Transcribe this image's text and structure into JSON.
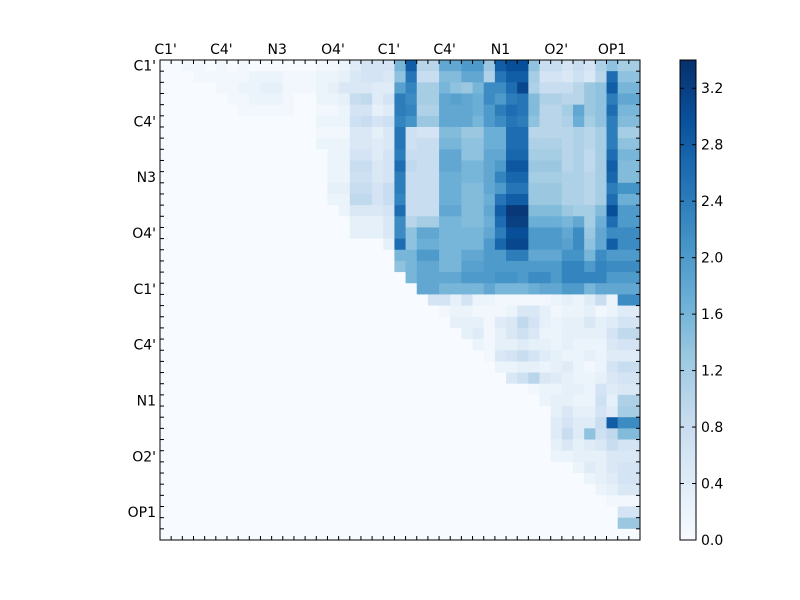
{
  "chart_data": {
    "type": "heatmap",
    "title": "",
    "xlabel": "",
    "ylabel": "",
    "n": 43,
    "x_tick_labels": [
      "C1'",
      "C4'",
      "N3",
      "O4'",
      "C1'",
      "C4'",
      "N1",
      "O2'",
      "OP1"
    ],
    "y_tick_labels": [
      "C1'",
      "C4'",
      "N3",
      "O4'",
      "C1'",
      "C4'",
      "N1",
      "O2'",
      "OP1"
    ],
    "tick_indices": [
      0,
      5,
      10,
      15,
      20,
      25,
      30,
      35,
      40
    ],
    "colorbar": {
      "min": 0.0,
      "max": 3.4,
      "ticks": [
        0.0,
        0.4,
        0.8,
        1.2,
        1.6,
        2.0,
        2.4,
        2.8,
        3.2
      ],
      "tick_labels": [
        "0.0",
        "0.4",
        "0.8",
        "1.2",
        "1.6",
        "2.0",
        "2.4",
        "2.8",
        "3.2"
      ],
      "colormap": "Blues"
    },
    "matrix": [
      "0 0 .1 .1 0 .1 0 .1 0 0 0 0 0 0 .1 .1 .2 .4 .6 .6 .6 1.6 2.8 1 1 1.8 1.8 2 2 1.3 2.8 3 3 1.4 .8 .8 .6 .8 .6 1.1 1.4 1.2 1.2",
      "0 0 0 .1 .1 .1 .1 .1 .2 .2 .2 .1 .1 .1 .2 .2 .3 .5 .6 .6 .5 1.4 2.5 .8 .8 1.5 1.5 1.8 1.8 1.1 2.5 2.8 2.8 1.2 .6 .6 .5 .7 .5 1 2.6 1.4 1.4",
      "0 0 0 0 0 .1 .1 .2 .2 .3 .3 .1 .1 .1 .2 .3 .5 .5 .5 .4 .4 1.9 2.3 1.2 1.2 1.6 1.4 1.3 1.6 2.2 2.2 2.6 3.1 1.1 .8 .8 .8 1 1.3 1.4 2.8 1.6 1.6",
      "0 0 0 0 0 0 .1 .1 .2 .2 .2 .1 0 0 .2 .2 .3 .8 .9 .4 .6 2.4 2.2 1.2 1.2 1.8 1.9 1.8 1.7 2.2 2 2.4 2.5 1.5 1.1 1.1 1 1 1.3 1.4 2.4 1.8 1.8",
      "0 0 0 0 0 0 0 .1 .1 .1 .1 .1 0 0 .1 .1 .2 .6 .6 .3 .4 2.4 2.3 1.1 1.1 1.8 1.8 1.8 1.7 2 2.4 2.6 2.5 1.5 1 1 1.2 1.8 1.3 1.4 2.6 1.6 1.6",
      "0 0 0 0 0 0 0 0 0 0 0 0 0 0 .2 .2 .2 .7 .8 .6 .7 2.3 2.1 1.3 1.3 1.8 1.8 1.8 1.6 2 2.2 2.5 2.4 1.4 1 1 1.1 1.7 1.2 1.4 2.4 1.5 1.5",
      "0 0 0 0 0 0 0 0 0 0 0 0 0 0 .1 .1 .1 .5 .5 .3 .5 2.5 .7 .6 .6 1.5 1.5 1.3 1.3 1.7 1.7 2.6 2.6 1 1 1 1 1.1 1 1.2 2.4 1.2 1.2",
      "0 0 0 0 0 0 0 0 0 0 0 0 0 0 .2 .2 .2 .5 .5 .4 .5 2.5 .7 .8 .8 1.6 1.6 1.4 1.4 1.7 1.7 2.6 2.6 1.1 1.1 1.1 1 1.1 1 1.2 2.4 1.4 1.4",
      "0 0 0 0 0 0 0 0 0 0 0 0 0 0 0 .2 .2 .6 .6 .4 .6 2.4 .8 .8 .8 1.8 1.8 1.4 1.4 1.8 1.8 2.7 2.7 1.2 1.2 1.2 1 1.1 .9 1.2 2.6 1.6 1.6",
      "0 0 0 0 0 0 0 0 0 0 0 0 0 0 0 .2 .2 .8 .8 .5 .6 2.6 .9 .8 .8 1.8 1.8 1.6 1.6 1.8 2 2.9 2.9 1.3 1.3 1.3 1 1.1 .9 1.2 2.8 1.5 1.5",
      "0 0 0 0 0 0 0 0 0 0 0 0 0 0 0 .2 .2 .7 .7 .5 .6 2.4 .8 .8 .8 1.7 1.7 1.6 1.6 1.8 2.3 2.7 2.7 1.2 1.2 1.2 1.1 1.1 1 1.2 2.7 1.5 1.5",
      "0 0 0 0 0 0 0 0 0 0 0 0 0 0 0 .3 .3 .8 .8 .6 .8 2.4 .8 .8 .8 1.7 1.7 1.5 1.5 1.8 2 2.5 2.5 1.3 1.3 1.3 1.1 1.1 1 1.2 2.4 2.1 2.1",
      "0 0 0 0 0 0 0 0 0 0 0 0 0 0 0 .2 .2 .9 .9 .6 .8 2.3 .8 .8 .8 1.7 1.7 1.5 1.5 1.7 2.5 2.8 2.8 1.3 1.3 1.3 1.1 1.1 1 1.2 2.6 1.7 1.7",
      "0 0 0 0 0 0 0 0 0 0 0 0 0 0 0 0 .2 .5 .5 .5 .6 2.6 .8 .8 .8 1.8 1.8 1.5 1.5 1.8 2.8 3.3 3.3 1.5 1.5 1.5 1.3 1.2 1.2 1.5 3 2 2",
      "0 0 0 0 0 0 0 0 0 0 0 0 0 0 0 0 0 .3 .3 .3 .5 2.2 1 1.2 1.2 1.6 1.6 1.5 1.5 1.7 2.6 3.2 3.2 1.7 1.7 1.7 1.6 1.8 1.2 1.7 2.6 2 2",
      "0 0 0 0 0 0 0 0 0 0 0 0 0 0 0 0 0 .3 .3 .3 .5 2.2 1.4 1.8 1.8 1.6 1.6 1.6 1.6 1.8 2.4 3 3 2 2 2 1.8 2.2 1.3 1.8 2.2 2.2 2.2",
      "0 0 0 0 0 0 0 0 0 0 0 0 0 0 0 0 0 0 0 0 .3 2.6 1.4 1.7 1.7 1.6 1.6 1.6 1.6 2 2.7 3.1 3.1 2 2 2 1.9 2.2 1.4 1.8 2.8 2.2 2.2",
      "0 0 0 0 0 0 0 0 0 0 0 0 0 0 0 0 0 0 0 0 0 1.6 1.6 2 2 1.6 1.6 1.8 1.8 2 2 2.4 2.4 1.8 1.8 1.8 2.1 2.1 1.6 2.2 2 2 2",
      "0 0 0 0 0 0 0 0 0 0 0 0 0 0 0 0 0 0 0 0 0 1.4 1.6 1.8 1.8 1.6 1.6 1.9 1.9 2 2 2 2 2 2 2 2.3 2.3 2 2.3 2.2 2.2 2.2",
      "0 0 0 0 0 0 0 0 0 0 0 0 0 0 0 0 0 0 0 0 0 0 1.6 1.8 1.8 1.8 1.8 2 2 2 2.1 2.1 2 2.2 2.2 2 2.3 2.3 2.3 2.3 2 2 2",
      "0 0 0 0 0 0 0 0 0 0 0 0 0 0 0 0 0 0 0 0 0 0 0 1.8 1.8 1.6 1.6 1.6 1.6 1.8 1.6 1.6 1.6 1.7 1.8 1.8 2 2 1.6 1.8 1.8 1.8 1.8",
      "0 0 0 0 0 0 0 0 0 0 0 0 0 0 0 0 0 0 0 0 0 0 0 0 .6 .6 .3 .6 .2 .2 .1 .1 .1 .1 .1 .2 .3 .2 .4 .8 .2 2.2 2.2",
      "0 0 0 0 0 0 0 0 0 0 0 0 0 0 0 0 0 0 0 0 0 0 0 0 0 .1 .2 .2 .1 .1 .1 .2 .5 .5 .3 .1 .2 .2 .3 .1 .2 .4 .4",
      "0 0 0 0 0 0 0 0 0 0 0 0 0 0 0 0 0 0 0 0 0 0 0 0 0 0 .3 .3 .3 .1 .4 .5 .9 .6 .3 .2 .3 .3 .5 .3 .4 .6 .6",
      "0 0 0 0 0 0 0 0 0 0 0 0 0 0 0 0 0 0 0 0 0 0 0 0 0 0 0 .3 .4 .1 .3 .5 .7 .5 .2 .2 .3 .3 .3 .3 .6 .9 .9",
      "0 0 0 0 0 0 0 0 0 0 0 0 0 0 0 0 0 0 0 0 0 0 0 0 0 0 0 0 .2 .1 .3 .3 .4 .3 .3 .2 .3 .2 .2 .2 .5 .6 .6",
      "0 0 0 0 0 0 0 0 0 0 0 0 0 0 0 0 0 0 0 0 0 0 0 0 0 0 0 0 0 .1 .5 .6 .8 .6 .4 .3 .2 .2 .3 .2 .4 .4 .4",
      "0 0 0 0 0 0 0 0 0 0 0 0 0 0 0 0 0 0 0 0 0 0 0 0 0 0 0 0 0 0 .2 .2 .3 .3 .2 .3 .4 .2 .1 .2 .6 .8 .8",
      "0 0 0 0 0 0 0 0 0 0 0 0 0 0 0 0 0 0 0 0 0 0 0 0 0 0 0 0 0 0 0 .5 .7 1 .5 .4 .3 .2 .2 .3 .5 .6 .6",
      "0 0 0 0 0 0 0 0 0 0 0 0 0 0 0 0 0 0 0 0 0 0 0 0 0 0 0 0 0 0 0 0 0 .1 .2 .2 .3 .3 .2 .6 .4 .5 .5",
      "0 0 0 0 0 0 0 0 0 0 0 0 0 0 0 0 0 0 0 0 0 0 0 0 0 0 0 0 0 0 0 0 0 0 .2 .3 .3 .2 .2 .7 .3 1.1 1.1",
      "0 0 0 0 0 0 0 0 0 0 0 0 0 0 0 0 0 0 0 0 0 0 0 0 0 0 0 0 0 0 0 0 0 0 0 .3 .5 .3 .3 .6 .4 1.2 1.2",
      "0 0 0 0 0 0 0 0 0 0 0 0 0 0 0 0 0 0 0 0 0 0 0 0 0 0 0 0 0 0 0 0 0 0 0 .4 .6 .4 .4 .8 2.8 2.2 2.2",
      "0 0 0 0 0 0 0 0 0 0 0 0 0 0 0 0 0 0 0 0 0 0 0 0 0 0 0 0 0 0 0 0 0 0 0 .4 .8 .4 1.4 .7 .9 1.5 1.5",
      "0 0 0 0 0 0 0 0 0 0 0 0 0 0 0 0 0 0 0 0 0 0 0 0 0 0 0 0 0 0 0 0 0 0 0 .3 .5 .3 .4 .5 .8 .6 .6",
      "0 0 0 0 0 0 0 0 0 0 0 0 0 0 0 0 0 0 0 0 0 0 0 0 0 0 0 0 0 0 0 0 0 0 0 .2 .2 .3 .3 .3 .5 .5 .5",
      "0 0 0 0 0 0 0 0 0 0 0 0 0 0 0 0 0 0 0 0 0 0 0 0 0 0 0 0 0 0 0 0 0 0 0 0 0 .2 .4 .3 .5 .6 .6",
      "0 0 0 0 0 0 0 0 0 0 0 0 0 0 0 0 0 0 0 0 0 0 0 0 0 0 0 0 0 0 0 0 0 0 0 0 0 0 .2 .3 .4 .6 .6",
      "0 0 0 0 0 0 0 0 0 0 0 0 0 0 0 0 0 0 0 0 0 0 0 0 0 0 0 0 0 0 0 0 0 0 0 0 0 0 0 .2 .3 .5 .5",
      "0 0 0 0 0 0 0 0 0 0 0 0 0 0 0 0 0 0 0 0 0 0 0 0 0 0 0 0 0 0 0 0 0 0 0 0 0 0 0 0 .1 .1 .1",
      "0 0 0 0 0 0 0 0 0 0 0 0 0 0 0 0 0 0 0 0 0 0 0 0 0 0 0 0 0 0 0 0 0 0 0 0 0 0 0 0 0 .6 .6",
      "0 0 0 0 0 0 0 0 0 0 0 0 0 0 0 0 0 0 0 0 0 0 0 0 0 0 0 0 0 0 0 0 0 0 0 0 0 0 0 0 0 1.3 1.3",
      "0 0 0 0 0 0 0 0 0 0 0 0 0 0 0 0 0 0 0 0 0 0 0 0 0 0 0 0 0 0 0 0 0 0 0 0 0 0 0 0 0 0 0"
    ]
  }
}
